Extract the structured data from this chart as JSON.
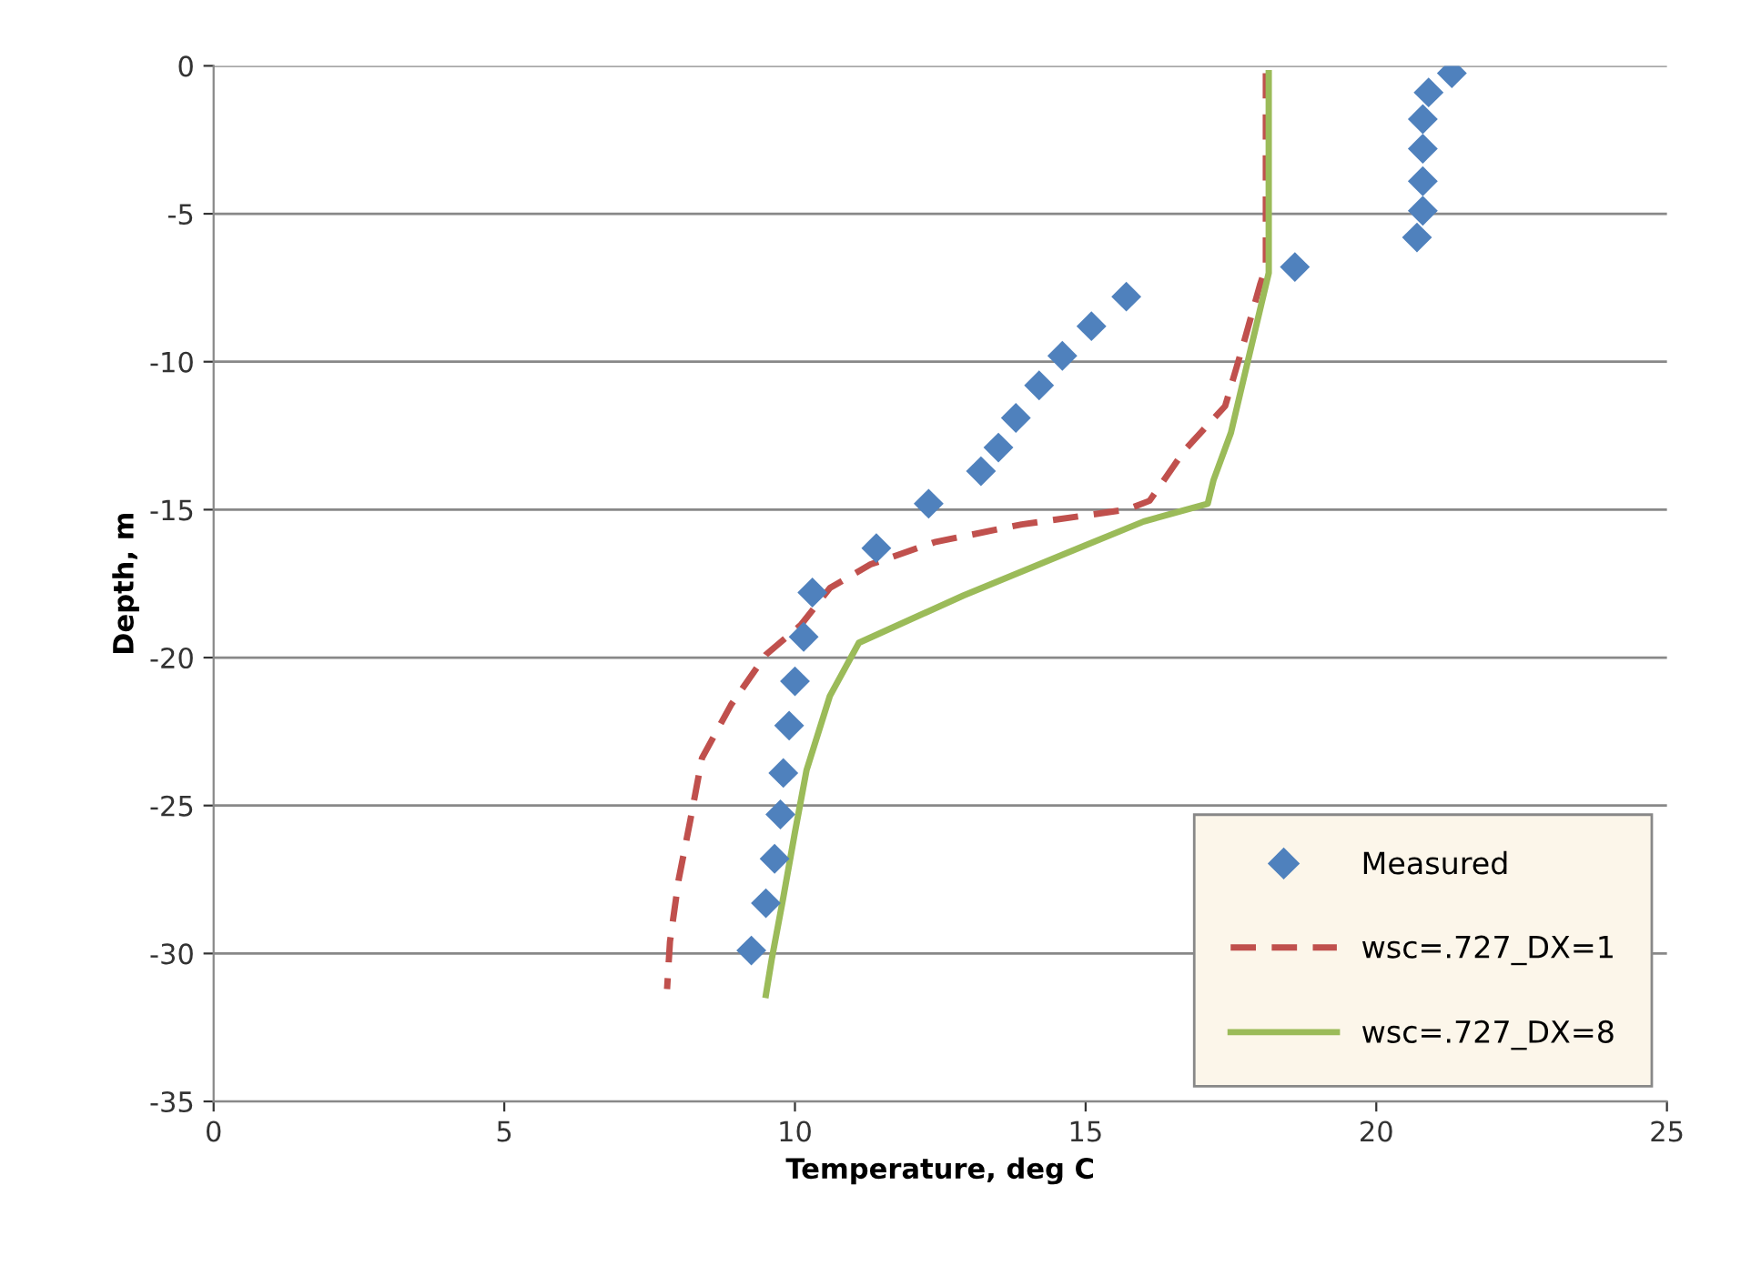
{
  "chart_data": {
    "type": "line",
    "xlabel": "Temperature, deg C",
    "ylabel": "Depth, m",
    "xlim": [
      0,
      25
    ],
    "xticks": [
      0,
      5,
      10,
      15,
      20,
      25
    ],
    "ylim": [
      -35,
      0
    ],
    "yticks": [
      -35,
      -30,
      -25,
      -20,
      -15,
      -10,
      -5,
      0
    ],
    "grid": "y",
    "legend": "bottom right",
    "series": [
      {
        "name": "Measured",
        "type": "scatter",
        "marker": "diamond",
        "color": "#4f81bd",
        "x": [
          21.3,
          20.9,
          20.8,
          20.8,
          20.8,
          20.8,
          20.7,
          18.6,
          15.7,
          15.1,
          14.6,
          14.2,
          13.8,
          13.5,
          13.2,
          12.3,
          11.4,
          10.3,
          10.15,
          10.0,
          9.9,
          9.8,
          9.75,
          9.65,
          9.5,
          9.25
        ],
        "values": [
          -0.25,
          -0.9,
          -1.8,
          -2.8,
          -3.9,
          -4.9,
          -5.8,
          -6.8,
          -7.8,
          -8.8,
          -9.8,
          -10.8,
          -11.9,
          -12.9,
          -13.7,
          -14.8,
          -16.3,
          -17.8,
          -19.3,
          -20.8,
          -22.3,
          -23.9,
          -25.3,
          -26.8,
          -28.3,
          -29.9
        ]
      },
      {
        "name": "wsc=.727_DX=1",
        "line_style": "dashed",
        "color": "#c0504d",
        "x": [
          18.1,
          18.1,
          18.0,
          17.7,
          17.4,
          16.7,
          16.1,
          15.7,
          13.9,
          12.4,
          11.3,
          10.6,
          10.1,
          9.5,
          8.9,
          8.4,
          8.2,
          8.0,
          7.85,
          7.8
        ],
        "values": [
          -0.25,
          -6.8,
          -7.4,
          -9.5,
          -11.5,
          -13.0,
          -14.7,
          -15.0,
          -15.5,
          -16.1,
          -16.85,
          -17.65,
          -18.9,
          -19.9,
          -21.6,
          -23.4,
          -25.5,
          -27.5,
          -29.6,
          -31.2
        ]
      },
      {
        "name": "wsc=.727_DX=8",
        "line_style": "solid",
        "color": "#9bbb59",
        "x": [
          18.15,
          18.15,
          17.8,
          17.5,
          17.2,
          17.1,
          16.0,
          15.0,
          12.9,
          11.1,
          10.6,
          10.2,
          10.0,
          9.8,
          9.6,
          9.5
        ],
        "values": [
          -0.25,
          -7.0,
          -9.9,
          -12.4,
          -14.0,
          -14.8,
          -15.4,
          -16.2,
          -17.9,
          -19.5,
          -21.3,
          -23.8,
          -25.9,
          -28.1,
          -30.2,
          -31.4
        ]
      }
    ]
  }
}
